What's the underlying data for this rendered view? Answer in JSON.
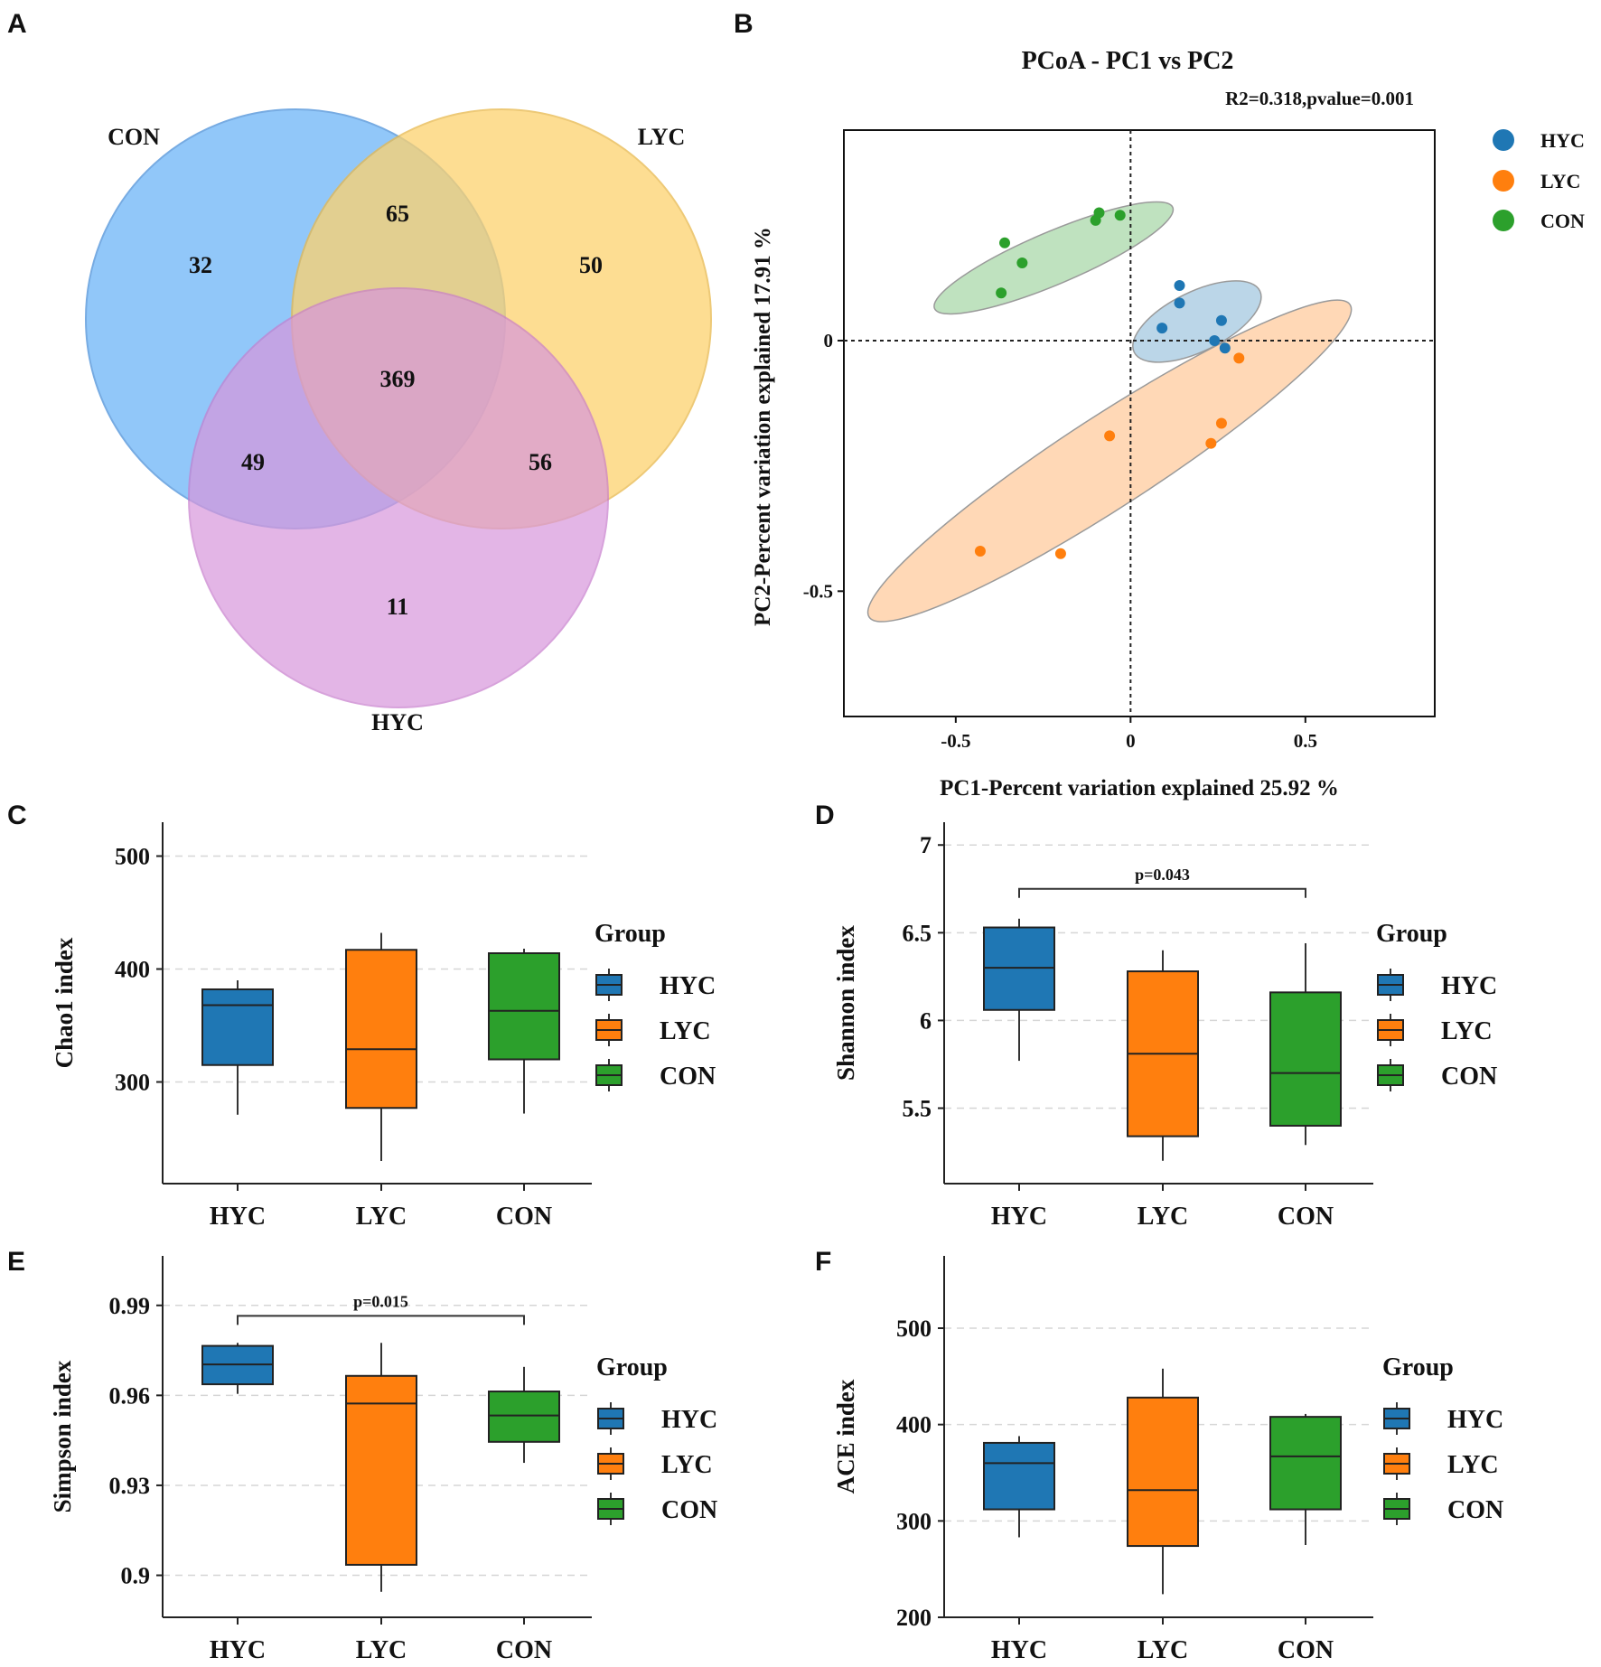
{
  "panels": {
    "A": "A",
    "B": "B",
    "C": "C",
    "D": "D",
    "E": "E",
    "F": "F"
  },
  "colors": {
    "HYC": "#1f77b4",
    "LYC": "#ff7f0e",
    "CON": "#2ca02c"
  },
  "chart_data": [
    {
      "panel": "A",
      "type": "venn",
      "sets": [
        {
          "name": "CON",
          "color": "#6db5f7"
        },
        {
          "name": "LYC",
          "color": "#fdd26e"
        },
        {
          "name": "HYC",
          "color": "#d896dc"
        }
      ],
      "regions": {
        "CON_only": 32,
        "LYC_only": 50,
        "HYC_only": 11,
        "CON_LYC": 65,
        "CON_HYC": 49,
        "LYC_HYC": 56,
        "all": 369
      }
    },
    {
      "panel": "B",
      "type": "scatter",
      "title": "PCoA - PC1 vs PC2",
      "subtitle": "R2=0.318,pvalue=0.001",
      "xlabel": "PC1-Percent variation explained 25.92 %",
      "ylabel": "PC2-Percent variation explained 17.91 %",
      "xlim": [
        -0.82,
        0.87
      ],
      "ylim": [
        -0.75,
        0.42
      ],
      "xticks": [
        -0.5,
        0,
        0.5
      ],
      "xtick_labels": [
        "-0.5",
        "0",
        "0.5"
      ],
      "yticks": [
        0,
        -0.5
      ],
      "ytick_labels": [
        "0",
        "-0.5"
      ],
      "legend": [
        "HYC",
        "LYC",
        "CON"
      ],
      "series": [
        {
          "name": "HYC",
          "points": [
            [
              0.14,
              0.11
            ],
            [
              0.14,
              0.075
            ],
            [
              0.09,
              0.025
            ],
            [
              0.26,
              0.04
            ],
            [
              0.24,
              0.0
            ],
            [
              0.27,
              -0.015
            ]
          ],
          "ellipse": {
            "cx": 0.19,
            "cy": 0.038,
            "rx": 0.2,
            "ry": 0.085,
            "angle": -26
          }
        },
        {
          "name": "LYC",
          "points": [
            [
              0.31,
              -0.035
            ],
            [
              0.26,
              -0.165
            ],
            [
              0.23,
              -0.205
            ],
            [
              -0.06,
              -0.19
            ],
            [
              -0.43,
              -0.42
            ],
            [
              -0.2,
              -0.425
            ]
          ],
          "ellipse": {
            "cx": -0.06,
            "cy": -0.24,
            "rx": 0.82,
            "ry": 0.13,
            "angle": -33
          }
        },
        {
          "name": "CON",
          "points": [
            [
              -0.1,
              0.24
            ],
            [
              -0.09,
              0.255
            ],
            [
              -0.03,
              0.25
            ],
            [
              -0.36,
              0.195
            ],
            [
              -0.31,
              0.155
            ],
            [
              -0.37,
              0.095
            ]
          ],
          "ellipse": {
            "cx": -0.22,
            "cy": 0.165,
            "rx": 0.37,
            "ry": 0.075,
            "angle": -23
          }
        }
      ]
    },
    {
      "panel": "C",
      "type": "box",
      "ylabel": "Chao1 index",
      "ylim": [
        210,
        530
      ],
      "yticks": [
        300,
        400,
        500
      ],
      "ytick_labels": [
        "300",
        "400",
        "500"
      ],
      "categories": [
        "HYC",
        "LYC",
        "CON"
      ],
      "legend_title": "Group",
      "boxes": [
        {
          "group": "HYC",
          "min": 271,
          "q1": 315,
          "median": 368,
          "q3": 382,
          "max": 390
        },
        {
          "group": "LYC",
          "min": 230,
          "q1": 277,
          "median": 329,
          "q3": 417,
          "max": 432
        },
        {
          "group": "CON",
          "min": 272,
          "q1": 320,
          "median": 363,
          "q3": 414,
          "max": 418
        }
      ]
    },
    {
      "panel": "D",
      "type": "box",
      "ylabel": "Shannon index",
      "ylim": [
        5.07,
        7.13
      ],
      "yticks": [
        5.5,
        6,
        6.5,
        7
      ],
      "ytick_labels": [
        "5.5",
        "6",
        "6.5",
        "7"
      ],
      "categories": [
        "HYC",
        "LYC",
        "CON"
      ],
      "legend_title": "Group",
      "significance": {
        "from": "HYC",
        "to": "CON",
        "y": 6.75,
        "label": "p=0.043"
      },
      "boxes": [
        {
          "group": "HYC",
          "min": 5.77,
          "q1": 6.06,
          "median": 6.3,
          "q3": 6.53,
          "max": 6.58
        },
        {
          "group": "LYC",
          "min": 5.2,
          "q1": 5.34,
          "median": 5.81,
          "q3": 6.28,
          "max": 6.4
        },
        {
          "group": "CON",
          "min": 5.29,
          "q1": 5.4,
          "median": 5.7,
          "q3": 6.16,
          "max": 6.44
        }
      ]
    },
    {
      "panel": "E",
      "type": "box",
      "ylabel": "Simpson index",
      "ylim": [
        0.886,
        1.0065
      ],
      "yticks": [
        0.9,
        0.93,
        0.96,
        0.99
      ],
      "ytick_labels": [
        "0.9",
        "0.93",
        "0.96",
        "0.99"
      ],
      "categories": [
        "HYC",
        "LYC",
        "CON"
      ],
      "legend_title": "Group",
      "significance": {
        "from": "HYC",
        "to": "CON",
        "y": 0.9865,
        "label": "p=0.015"
      },
      "boxes": [
        {
          "group": "HYC",
          "min": 0.9605,
          "q1": 0.9637,
          "median": 0.9703,
          "q3": 0.9765,
          "max": 0.9775
        },
        {
          "group": "LYC",
          "min": 0.8945,
          "q1": 0.9035,
          "median": 0.9573,
          "q3": 0.9665,
          "max": 0.9775
        },
        {
          "group": "CON",
          "min": 0.9375,
          "q1": 0.9445,
          "median": 0.9533,
          "q3": 0.9613,
          "max": 0.9695
        }
      ]
    },
    {
      "panel": "F",
      "type": "box",
      "ylabel": "ACE index",
      "ylim": [
        200,
        575
      ],
      "yticks": [
        200,
        300,
        400,
        500
      ],
      "ytick_labels": [
        "200",
        "300",
        "400",
        "500"
      ],
      "categories": [
        "HYC",
        "LYC",
        "CON"
      ],
      "legend_title": "Group",
      "boxes": [
        {
          "group": "HYC",
          "min": 283,
          "q1": 312,
          "median": 360,
          "q3": 381,
          "max": 388
        },
        {
          "group": "LYC",
          "min": 224,
          "q1": 274,
          "median": 332,
          "q3": 428,
          "max": 458
        },
        {
          "group": "CON",
          "min": 275,
          "q1": 312,
          "median": 367,
          "q3": 408,
          "max": 411
        }
      ]
    }
  ]
}
